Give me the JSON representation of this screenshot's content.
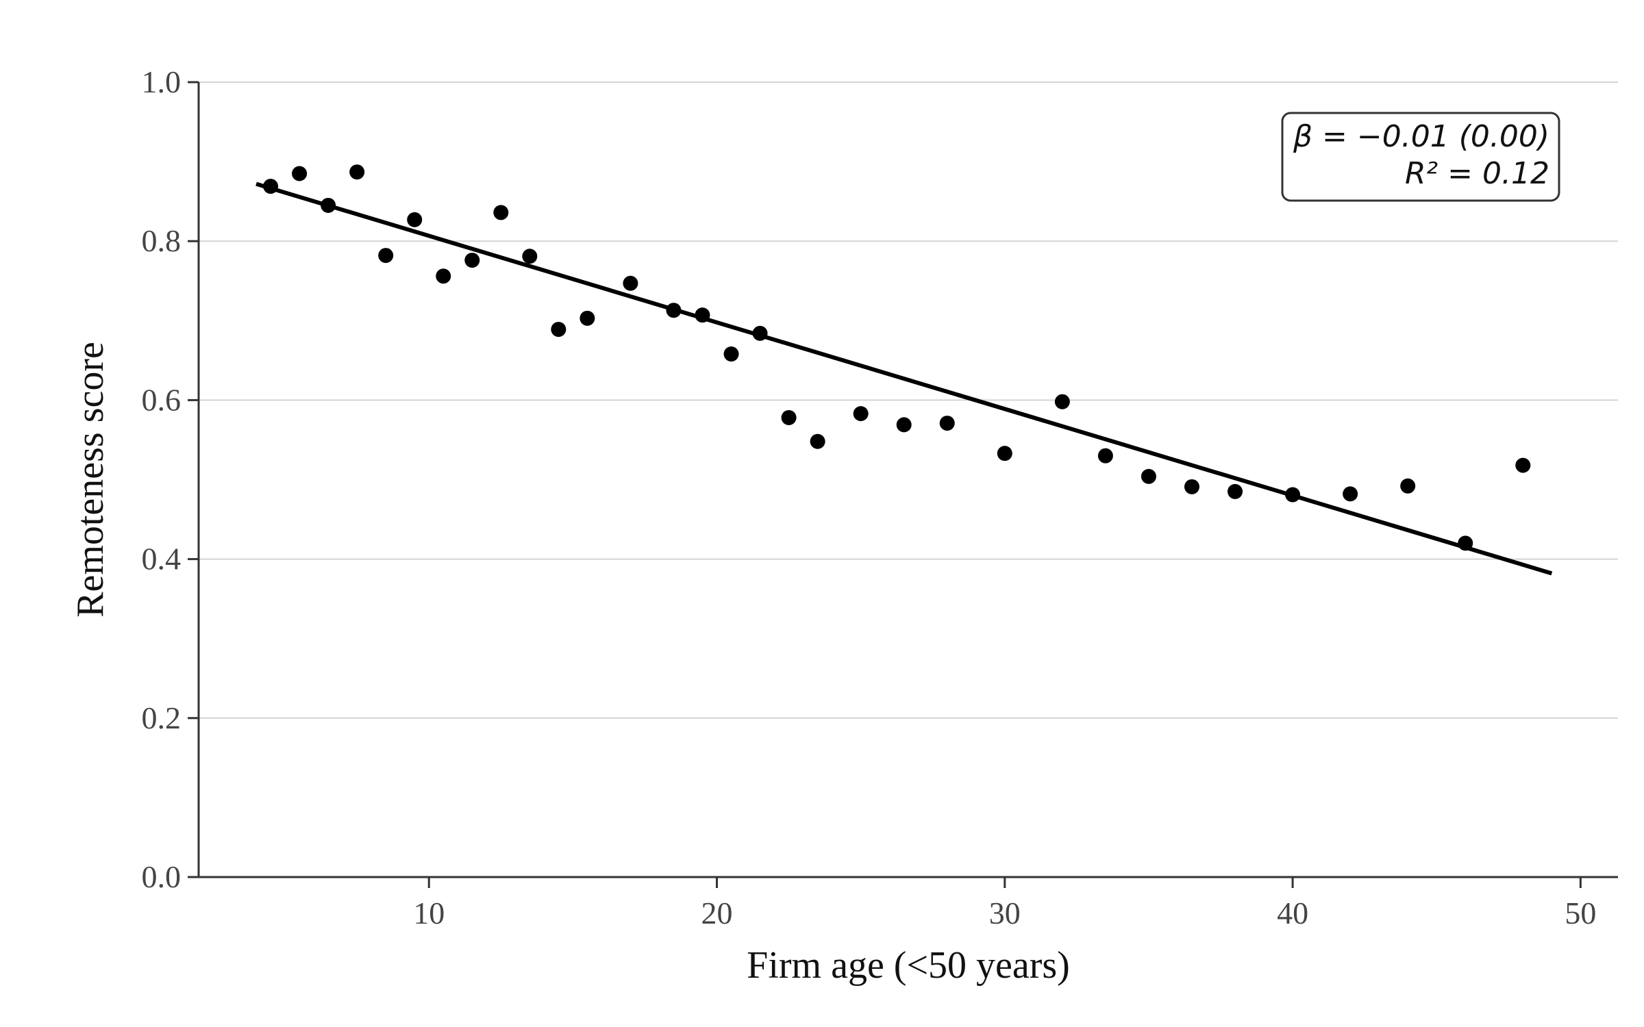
{
  "chart_data": {
    "type": "scatter",
    "title": "",
    "xlabel": "Firm age (<50 years)",
    "ylabel": "Remoteness score",
    "xlim": [
      2,
      51.3
    ],
    "ylim": [
      0,
      1.0
    ],
    "x_ticks": [
      10,
      20,
      30,
      40,
      50
    ],
    "y_ticks": [
      0.0,
      0.2,
      0.4,
      0.6,
      0.8,
      1.0
    ],
    "y_tick_labels": [
      "0.0",
      "0.2",
      "0.4",
      "0.6",
      "0.8",
      "1.0"
    ],
    "grid": "horizontal",
    "series": [
      {
        "type": "scatter",
        "color": "#000000",
        "points": [
          {
            "x": 4.5,
            "y": 0.869
          },
          {
            "x": 5.5,
            "y": 0.885
          },
          {
            "x": 6.5,
            "y": 0.845
          },
          {
            "x": 7.5,
            "y": 0.887
          },
          {
            "x": 8.5,
            "y": 0.782
          },
          {
            "x": 9.5,
            "y": 0.827
          },
          {
            "x": 10.5,
            "y": 0.756
          },
          {
            "x": 11.5,
            "y": 0.776
          },
          {
            "x": 12.5,
            "y": 0.836
          },
          {
            "x": 13.5,
            "y": 0.781
          },
          {
            "x": 14.5,
            "y": 0.689
          },
          {
            "x": 15.5,
            "y": 0.703
          },
          {
            "x": 17.0,
            "y": 0.747
          },
          {
            "x": 18.5,
            "y": 0.713
          },
          {
            "x": 19.5,
            "y": 0.707
          },
          {
            "x": 20.5,
            "y": 0.658
          },
          {
            "x": 21.5,
            "y": 0.684
          },
          {
            "x": 22.5,
            "y": 0.578
          },
          {
            "x": 23.5,
            "y": 0.548
          },
          {
            "x": 25.0,
            "y": 0.583
          },
          {
            "x": 26.5,
            "y": 0.569
          },
          {
            "x": 28.0,
            "y": 0.571
          },
          {
            "x": 30.0,
            "y": 0.533
          },
          {
            "x": 32.0,
            "y": 0.598
          },
          {
            "x": 33.5,
            "y": 0.53
          },
          {
            "x": 35.0,
            "y": 0.504
          },
          {
            "x": 36.5,
            "y": 0.491
          },
          {
            "x": 38.0,
            "y": 0.485
          },
          {
            "x": 40.0,
            "y": 0.481
          },
          {
            "x": 42.0,
            "y": 0.482
          },
          {
            "x": 44.0,
            "y": 0.492
          },
          {
            "x": 46.0,
            "y": 0.42
          },
          {
            "x": 48.0,
            "y": 0.518
          }
        ]
      },
      {
        "type": "line",
        "color": "#000000",
        "points": [
          {
            "x": 4.0,
            "y": 0.872
          },
          {
            "x": 49.0,
            "y": 0.382
          }
        ]
      }
    ],
    "annotation": {
      "beta_label": "β = −0.01 (0.00)",
      "r2_label": "R² = 0.12",
      "placement": "top-right"
    }
  }
}
